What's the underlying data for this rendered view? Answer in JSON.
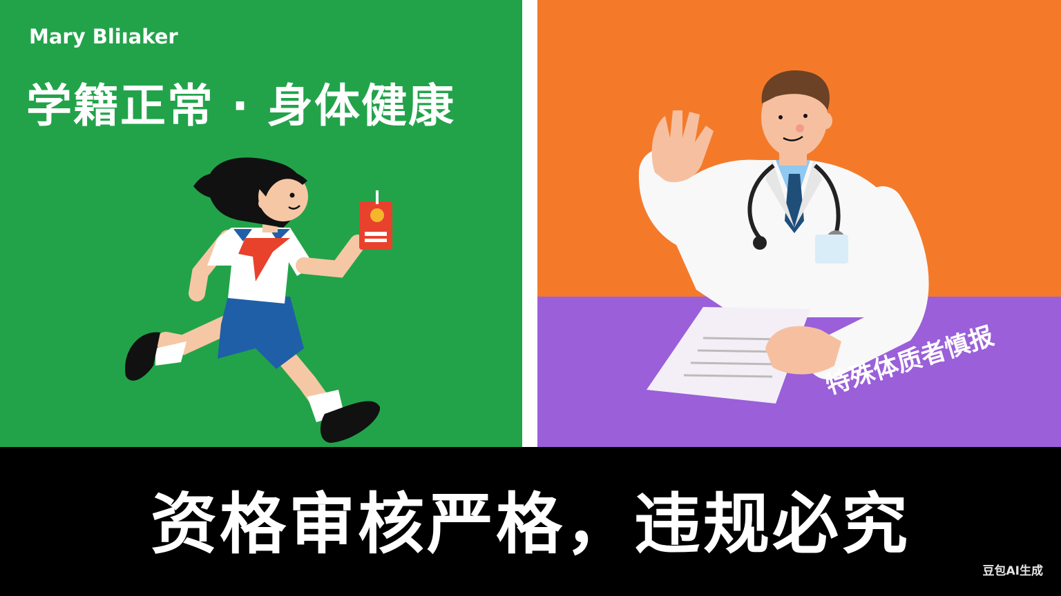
{
  "left_panel": {
    "brand": "Mary Bliıaker",
    "headline": "学籍正常 · 身体健康",
    "figure": "running-student-illustration"
  },
  "right_panel": {
    "note": "特殊体质者慎报",
    "figure": "doctor-illustration"
  },
  "bottom_banner": {
    "slogan": "资格审核严格，违规必究"
  },
  "watermark": "豆包AI生成",
  "colors": {
    "left_bg": "#22A34A",
    "right_bg": "#F47A2A",
    "desk": "#9A5FD9",
    "banner": "#000000",
    "text": "#FFFFFF"
  }
}
